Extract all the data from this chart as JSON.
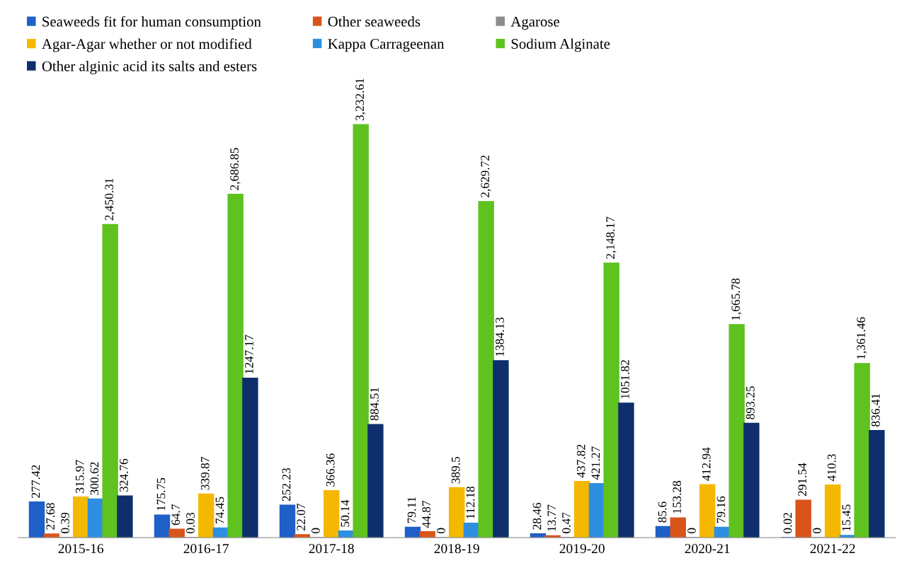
{
  "chart_data": {
    "type": "bar",
    "categories": [
      "2015-16",
      "2016-17",
      "2017-18",
      "2018-19",
      "2019-20",
      "2020-21",
      "2021-22"
    ],
    "tick_labels": "x",
    "legend": "top",
    "grid": false,
    "series": [
      {
        "name": "Seaweeds fit for human consumption",
        "color": "#1f5fc8",
        "values": [
          277.42,
          175.75,
          252.23,
          79.11,
          28.46,
          85.6,
          0.02
        ],
        "value_labels": [
          "277.42",
          "175.75",
          "252.23",
          "79.11",
          "28.46",
          "85.6",
          "0.02"
        ]
      },
      {
        "name": "Other seaweeds",
        "color": "#d9541a",
        "values": [
          27.68,
          64.7,
          22.07,
          44.87,
          13.77,
          153.28,
          291.54
        ],
        "value_labels": [
          "27.68",
          "64.7",
          "22.07",
          "44.87",
          "13.77",
          "153.28",
          "291.54"
        ]
      },
      {
        "name": "Agarose",
        "color": "#8c8c8c",
        "values": [
          0.39,
          0.03,
          0,
          0,
          0.47,
          0,
          0
        ],
        "value_labels": [
          "0.39",
          "0.03",
          "0",
          "0",
          "0.47",
          "0",
          "0"
        ]
      },
      {
        "name": "Agar-Agar whether or not modified",
        "color": "#f5b800",
        "values": [
          315.97,
          339.87,
          366.36,
          389.5,
          437.82,
          412.94,
          410.3
        ],
        "value_labels": [
          "315.97",
          "339.87",
          "366.36",
          "389.5",
          "437.82",
          "412.94",
          "410.3"
        ]
      },
      {
        "name": "Kappa Carrageenan",
        "color": "#2e8fe0",
        "values": [
          300.62,
          74.45,
          50.14,
          112.18,
          421.27,
          79.16,
          15.45
        ],
        "value_labels": [
          "300.62",
          "74.45",
          "50.14",
          "112.18",
          "421.27",
          "79.16",
          "15.45"
        ]
      },
      {
        "name": "Sodium Alginate",
        "color": "#5fc21e",
        "values": [
          2450.31,
          2686.85,
          3232.61,
          2629.72,
          2148.17,
          1665.78,
          1361.46
        ],
        "value_labels": [
          "2,450.31",
          "2,686.85",
          "3,232.61",
          "2,629.72",
          "2,148.17",
          "1,665.78",
          "1,361.46"
        ]
      },
      {
        "name": "Other alginic acid its salts and esters",
        "color": "#0e2f6b",
        "values": [
          324.76,
          1247.17,
          884.51,
          1384.13,
          1051.82,
          893.25,
          836.41
        ],
        "value_labels": [
          "324.76",
          "1247.17",
          "884.51",
          "1384.13",
          "1051.82",
          "893.25",
          "836.41"
        ]
      }
    ]
  }
}
